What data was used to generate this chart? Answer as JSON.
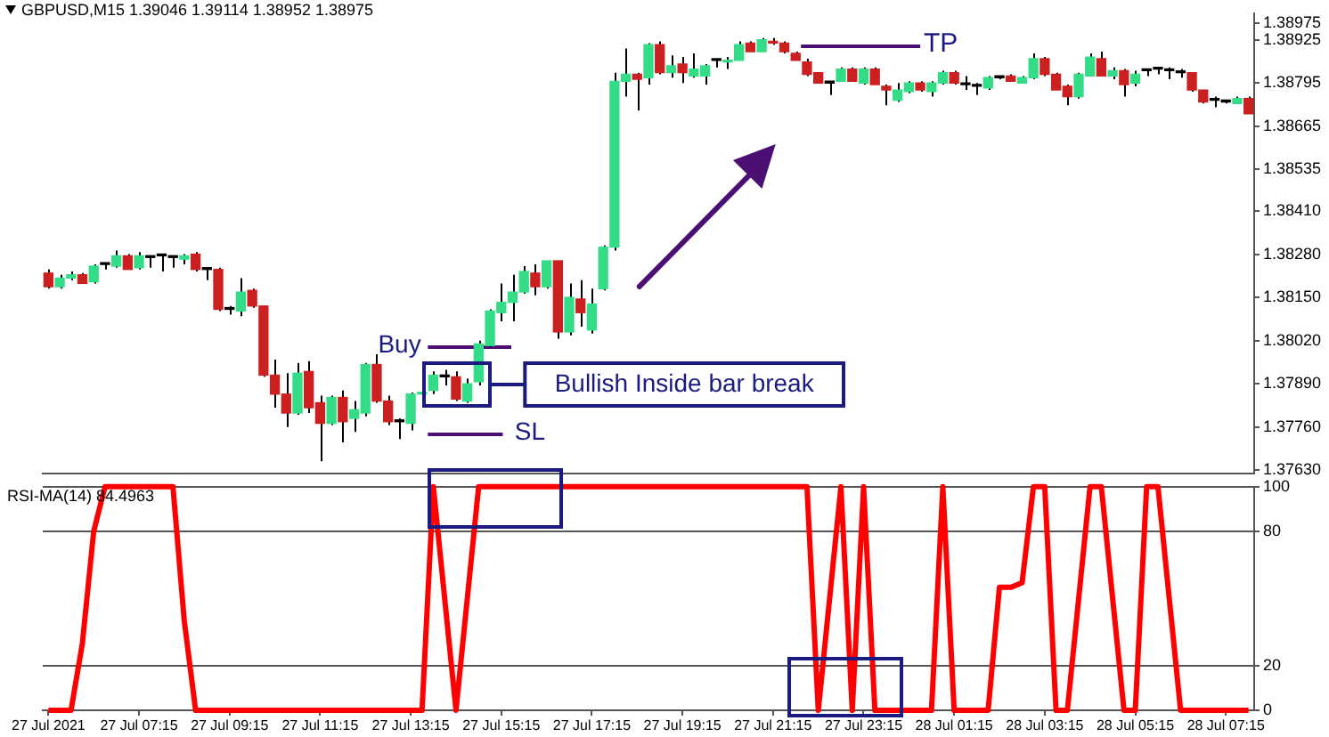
{
  "chart_data": [
    {
      "type": "candlestick",
      "title": "GBPUSD,M15 1.39046 1.39114 1.38952 1.38975",
      "categories": [
        null,
        null,
        null,
        null,
        null,
        null,
        null,
        null,
        null,
        null,
        null,
        null,
        null,
        null,
        null,
        null,
        null,
        null,
        null,
        null,
        null,
        null,
        null,
        null,
        null,
        null,
        null,
        null,
        null,
        null,
        null,
        null,
        null,
        null,
        null,
        null,
        null,
        null,
        null,
        null,
        null,
        null,
        null,
        null,
        null,
        null,
        null,
        null,
        null,
        null,
        null,
        null,
        null,
        null,
        null,
        null,
        null,
        null,
        null,
        null,
        null,
        null,
        null,
        null,
        null,
        null,
        null,
        null,
        null,
        null,
        null,
        null,
        null,
        null,
        null,
        null,
        null,
        null,
        null,
        null,
        null,
        null,
        null,
        null,
        null,
        null,
        null,
        null,
        null,
        null,
        null,
        null,
        null,
        null,
        null,
        null,
        null,
        null,
        null,
        null,
        null,
        null,
        null,
        null,
        null,
        null,
        null
      ],
      "ohlc": [
        [
          1.38223,
          1.38234,
          1.38176,
          1.38182
        ],
        [
          1.38182,
          1.38218,
          1.38176,
          1.38208
        ],
        [
          1.38208,
          1.38228,
          1.38202,
          1.38218
        ],
        [
          1.38218,
          1.38223,
          1.38192,
          1.38192
        ],
        [
          1.38197,
          1.38249,
          1.38192,
          1.38244
        ],
        [
          1.38249,
          1.38254,
          1.38234,
          1.38249
        ],
        [
          1.38244,
          1.38291,
          1.38239,
          1.38275
        ],
        [
          1.38275,
          1.3828,
          1.38234,
          1.38234
        ],
        [
          1.38239,
          1.38286,
          1.38234,
          1.38275
        ],
        [
          1.3827,
          1.38275,
          1.38239,
          1.3827
        ],
        [
          1.38275,
          1.38275,
          1.38228,
          1.38275
        ],
        [
          1.3827,
          1.38275,
          1.38239,
          1.3827
        ],
        [
          1.38265,
          1.3828,
          1.38249,
          1.38275
        ],
        [
          1.3828,
          1.38286,
          1.38228,
          1.38234
        ],
        [
          1.38234,
          1.38239,
          1.38202,
          1.38234
        ],
        [
          1.38234,
          1.38239,
          1.38109,
          1.38114
        ],
        [
          1.38114,
          1.38124,
          1.38098,
          1.38114
        ],
        [
          1.38109,
          1.38208,
          1.38093,
          1.38166
        ],
        [
          1.38171,
          1.38176,
          1.38119,
          1.38124
        ],
        [
          1.38124,
          1.38124,
          1.37911,
          1.37916
        ],
        [
          1.37916,
          1.37963,
          1.37818,
          1.37859
        ],
        [
          1.37859,
          1.37922,
          1.3776,
          1.37802
        ],
        [
          1.37802,
          1.37953,
          1.37797,
          1.37922
        ],
        [
          1.37927,
          1.37958,
          1.37802,
          1.37818
        ],
        [
          1.37833,
          1.37854,
          1.37657,
          1.37771
        ],
        [
          1.37771,
          1.37854,
          1.37766,
          1.37849
        ],
        [
          1.37849,
          1.3787,
          1.37714,
          1.37776
        ],
        [
          1.37786,
          1.37838,
          1.37745,
          1.37812
        ],
        [
          1.37802,
          1.37953,
          1.37792,
          1.37948
        ],
        [
          1.37948,
          1.37979,
          1.37833,
          1.37838
        ],
        [
          1.37838,
          1.37854,
          1.37766,
          1.37776
        ],
        [
          1.37776,
          1.37786,
          1.37724,
          1.37776
        ],
        [
          1.37771,
          1.37864,
          1.3775,
          1.37859
        ],
        [
          1.37859,
          1.3787,
          1.37854,
          1.37864
        ],
        [
          1.3787,
          1.37927,
          1.37859,
          1.37916
        ],
        [
          1.37911,
          1.37932,
          1.37885,
          1.37911
        ],
        [
          1.37911,
          1.37927,
          1.37838,
          1.37844
        ],
        [
          1.37838,
          1.37906,
          1.37833,
          1.3789
        ],
        [
          1.37896,
          1.3802,
          1.37885,
          1.3801
        ],
        [
          1.38005,
          1.38114,
          1.38,
          1.38109
        ],
        [
          1.38104,
          1.38192,
          1.38078,
          1.38135
        ],
        [
          1.38135,
          1.38218,
          1.38078,
          1.38166
        ],
        [
          1.38166,
          1.38244,
          1.38161,
          1.38228
        ],
        [
          1.38223,
          1.38249,
          1.38156,
          1.38182
        ],
        [
          1.38182,
          1.3826,
          1.38176,
          1.3826
        ],
        [
          1.3826,
          1.3826,
          1.38026,
          1.38046
        ],
        [
          1.38046,
          1.38192,
          1.38036,
          1.3815
        ],
        [
          1.38145,
          1.38202,
          1.38062,
          1.38104
        ],
        [
          1.38052,
          1.38176,
          1.38041,
          1.3813
        ],
        [
          1.38176,
          1.38306,
          1.38171,
          1.38301
        ],
        [
          1.38301,
          1.38826,
          1.38291,
          1.388
        ],
        [
          1.388,
          1.38899,
          1.38754,
          1.38821
        ],
        [
          1.38821,
          1.38826,
          1.38712,
          1.38806
        ],
        [
          1.38811,
          1.38915,
          1.3879,
          1.3891
        ],
        [
          1.3891,
          1.3892,
          1.38821,
          1.38826
        ],
        [
          1.38826,
          1.38878,
          1.38811,
          1.38847
        ],
        [
          1.38852,
          1.38873,
          1.38795,
          1.38826
        ],
        [
          1.38816,
          1.38884,
          1.38811,
          1.38837
        ],
        [
          1.38816,
          1.38852,
          1.3879,
          1.38847
        ],
        [
          1.38863,
          1.38868,
          1.38842,
          1.38863
        ],
        [
          1.38858,
          1.38873,
          1.38837,
          1.38863
        ],
        [
          1.38863,
          1.3892,
          1.38863,
          1.3891
        ],
        [
          1.38915,
          1.3892,
          1.38889,
          1.38889
        ],
        [
          1.38889,
          1.3893,
          1.38889,
          1.38925
        ],
        [
          1.3892,
          1.3893,
          1.3891,
          1.38915
        ],
        [
          1.38915,
          1.3892,
          1.38884,
          1.38889
        ],
        [
          1.38884,
          1.38889,
          1.38863,
          1.38863
        ],
        [
          1.38858,
          1.38868,
          1.38816,
          1.38821
        ],
        [
          1.38826,
          1.38826,
          1.38795,
          1.38795
        ],
        [
          1.38795,
          1.38795,
          1.38759,
          1.38795
        ],
        [
          1.388,
          1.38842,
          1.388,
          1.38837
        ],
        [
          1.38837,
          1.38842,
          1.388,
          1.388
        ],
        [
          1.38795,
          1.38842,
          1.3879,
          1.38837
        ],
        [
          1.38837,
          1.38842,
          1.3879,
          1.3879
        ],
        [
          1.38785,
          1.3879,
          1.38728,
          1.38774
        ],
        [
          1.38743,
          1.38795,
          1.38738,
          1.38774
        ],
        [
          1.38769,
          1.388,
          1.38764,
          1.38795
        ],
        [
          1.38795,
          1.388,
          1.38769,
          1.38774
        ],
        [
          1.38769,
          1.388,
          1.38754,
          1.38795
        ],
        [
          1.38795,
          1.38832,
          1.3879,
          1.38826
        ],
        [
          1.38826,
          1.38832,
          1.3879,
          1.38795
        ],
        [
          1.3879,
          1.38816,
          1.38774,
          1.3879
        ],
        [
          1.38785,
          1.38795,
          1.38759,
          1.38785
        ],
        [
          1.3878,
          1.38816,
          1.38774,
          1.38811
        ],
        [
          1.38811,
          1.38816,
          1.38806,
          1.38811
        ],
        [
          1.38816,
          1.38821,
          1.388,
          1.388
        ],
        [
          1.38795,
          1.38816,
          1.38795,
          1.38811
        ],
        [
          1.38811,
          1.38884,
          1.38806,
          1.38868
        ],
        [
          1.38868,
          1.38873,
          1.38816,
          1.38821
        ],
        [
          1.38821,
          1.38826,
          1.38774,
          1.38774
        ],
        [
          1.38785,
          1.3879,
          1.38728,
          1.38754
        ],
        [
          1.38754,
          1.38826,
          1.38748,
          1.38821
        ],
        [
          1.38816,
          1.38884,
          1.38816,
          1.38873
        ],
        [
          1.38868,
          1.38889,
          1.38816,
          1.38816
        ],
        [
          1.38816,
          1.38842,
          1.38806,
          1.38832
        ],
        [
          1.38832,
          1.38837,
          1.38754,
          1.3879
        ],
        [
          1.38795,
          1.38832,
          1.38785,
          1.38821
        ],
        [
          1.38832,
          1.38832,
          1.38816,
          1.38832
        ],
        [
          1.38837,
          1.38842,
          1.38821,
          1.38837
        ],
        [
          1.38832,
          1.38842,
          1.38806,
          1.38832
        ],
        [
          1.38826,
          1.38837,
          1.38811,
          1.38826
        ],
        [
          1.38826,
          1.38826,
          1.38769,
          1.38774
        ],
        [
          1.38774,
          1.38774,
          1.38733,
          1.38738
        ],
        [
          1.38743,
          1.38754,
          1.38722,
          1.38743
        ],
        [
          1.38738,
          1.38738,
          1.38733,
          1.38738
        ],
        [
          1.38733,
          1.38754,
          1.38733,
          1.38748
        ],
        [
          1.38748,
          1.38754,
          1.38702,
          1.38702
        ]
      ],
      "colors": [
        "#cc1f1f",
        "#33dd88",
        "#33dd88",
        "#cc1f1f",
        "#33dd88",
        "#000000",
        "#33dd88",
        "#cc1f1f",
        "#33dd88",
        "#000000",
        "#000000",
        "#000000",
        "#33dd88",
        "#cc1f1f",
        "#000000",
        "#cc1f1f",
        "#000000",
        "#33dd88",
        "#cc1f1f",
        "#cc1f1f",
        "#cc1f1f",
        "#cc1f1f",
        "#33dd88",
        "#cc1f1f",
        "#cc1f1f",
        "#33dd88",
        "#cc1f1f",
        "#33dd88",
        "#33dd88",
        "#cc1f1f",
        "#cc1f1f",
        "#000000",
        "#33dd88",
        "#33dd88",
        "#33dd88",
        "#000000",
        "#cc1f1f",
        "#33dd88",
        "#33dd88",
        "#33dd88",
        "#33dd88",
        "#33dd88",
        "#33dd88",
        "#cc1f1f",
        "#33dd88",
        "#cc1f1f",
        "#33dd88",
        "#cc1f1f",
        "#33dd88",
        "#33dd88",
        "#33dd88",
        "#33dd88",
        "#cc1f1f",
        "#33dd88",
        "#cc1f1f",
        "#33dd88",
        "#cc1f1f",
        "#33dd88",
        "#33dd88",
        "#000000",
        "#33dd88",
        "#33dd88",
        "#cc1f1f",
        "#33dd88",
        "#cc1f1f",
        "#cc1f1f",
        "#cc1f1f",
        "#cc1f1f",
        "#cc1f1f",
        "#000000",
        "#33dd88",
        "#cc1f1f",
        "#33dd88",
        "#cc1f1f",
        "#cc1f1f",
        "#33dd88",
        "#33dd88",
        "#cc1f1f",
        "#33dd88",
        "#33dd88",
        "#cc1f1f",
        "#000000",
        "#000000",
        "#33dd88",
        "#000000",
        "#cc1f1f",
        "#33dd88",
        "#33dd88",
        "#cc1f1f",
        "#cc1f1f",
        "#cc1f1f",
        "#33dd88",
        "#33dd88",
        "#cc1f1f",
        "#33dd88",
        "#cc1f1f",
        "#33dd88",
        "#000000",
        "#000000",
        "#000000",
        "#000000",
        "#cc1f1f",
        "#cc1f1f",
        "#000000",
        "#000000",
        "#33dd88",
        "#cc1f1f"
      ],
      "ylim": [
        1.3762,
        1.39005
      ],
      "yticks": [
        {
          "value": 1.38975,
          "label": "1.38975"
        },
        {
          "value": 1.38925,
          "label": "1.38925"
        },
        {
          "value": 1.38795,
          "label": "1.38795"
        },
        {
          "value": 1.38665,
          "label": "1.38665"
        },
        {
          "value": 1.38535,
          "label": "1.38535"
        },
        {
          "value": 1.3841,
          "label": "1.38410"
        },
        {
          "value": 1.3828,
          "label": "1.38280"
        },
        {
          "value": 1.3815,
          "label": "1.38150"
        },
        {
          "value": 1.3802,
          "label": "1.38020"
        },
        {
          "value": 1.3789,
          "label": "1.37890"
        },
        {
          "value": 1.3776,
          "label": "1.37760"
        },
        {
          "value": 1.3763,
          "label": "1.37630"
        }
      ],
      "tick_labels": "y",
      "annotations": [
        "Buy",
        "SL",
        "TP",
        "Bullish Inside bar break"
      ]
    },
    {
      "type": "line",
      "title": "RSI-MA(14) 84.4963",
      "categories": [
        "27 Jul 2021",
        null,
        null,
        null,
        null,
        null,
        null,
        null,
        "27 Jul 07:15",
        null,
        null,
        null,
        null,
        null,
        null,
        null,
        "27 Jul 09:15",
        null,
        null,
        null,
        null,
        null,
        null,
        null,
        "27 Jul 11:15",
        null,
        null,
        null,
        null,
        null,
        null,
        null,
        "27 Jul 13:15",
        null,
        null,
        null,
        null,
        null,
        null,
        null,
        "27 Jul 15:15",
        null,
        null,
        null,
        null,
        null,
        null,
        null,
        "27 Jul 17:15",
        null,
        null,
        null,
        null,
        null,
        null,
        null,
        "27 Jul 19:15",
        null,
        null,
        null,
        null,
        null,
        null,
        null,
        "27 Jul 21:15",
        null,
        null,
        null,
        null,
        null,
        null,
        null,
        "27 Jul 23:15",
        null,
        null,
        null,
        null,
        null,
        null,
        null,
        "28 Jul 01:15",
        null,
        null,
        null,
        null,
        null,
        null,
        null,
        "28 Jul 03:15",
        null,
        null,
        null,
        null,
        null,
        null,
        null,
        "28 Jul 05:15",
        null,
        null,
        null,
        null,
        null,
        null,
        null,
        "28 Jul 07:15",
        null,
        null
      ],
      "values": [
        0,
        0,
        0,
        30,
        80,
        100,
        100,
        100,
        100,
        100,
        100,
        100,
        40,
        0,
        0,
        0,
        0,
        0,
        0,
        0,
        0,
        0,
        0,
        0,
        0,
        0,
        0,
        0,
        0,
        0,
        0,
        0,
        0,
        0,
        100,
        50,
        0,
        50,
        100,
        100,
        100,
        100,
        100,
        100,
        100,
        100,
        100,
        100,
        100,
        100,
        100,
        100,
        100,
        100,
        100,
        100,
        100,
        100,
        100,
        100,
        100,
        100,
        100,
        100,
        100,
        100,
        100,
        100,
        0,
        50,
        100,
        0,
        100,
        0,
        0,
        0,
        0,
        0,
        0,
        100,
        0,
        0,
        0,
        0,
        55,
        55,
        57,
        100,
        100,
        0,
        0,
        50,
        100,
        100,
        50,
        0,
        0,
        100,
        100,
        50,
        0,
        0,
        0,
        0,
        0,
        0,
        0
      ],
      "color": "#ff0000",
      "ylim": [
        0,
        100
      ],
      "yticks": [
        0,
        20,
        80,
        100
      ],
      "grid": "y"
    }
  ]
}
